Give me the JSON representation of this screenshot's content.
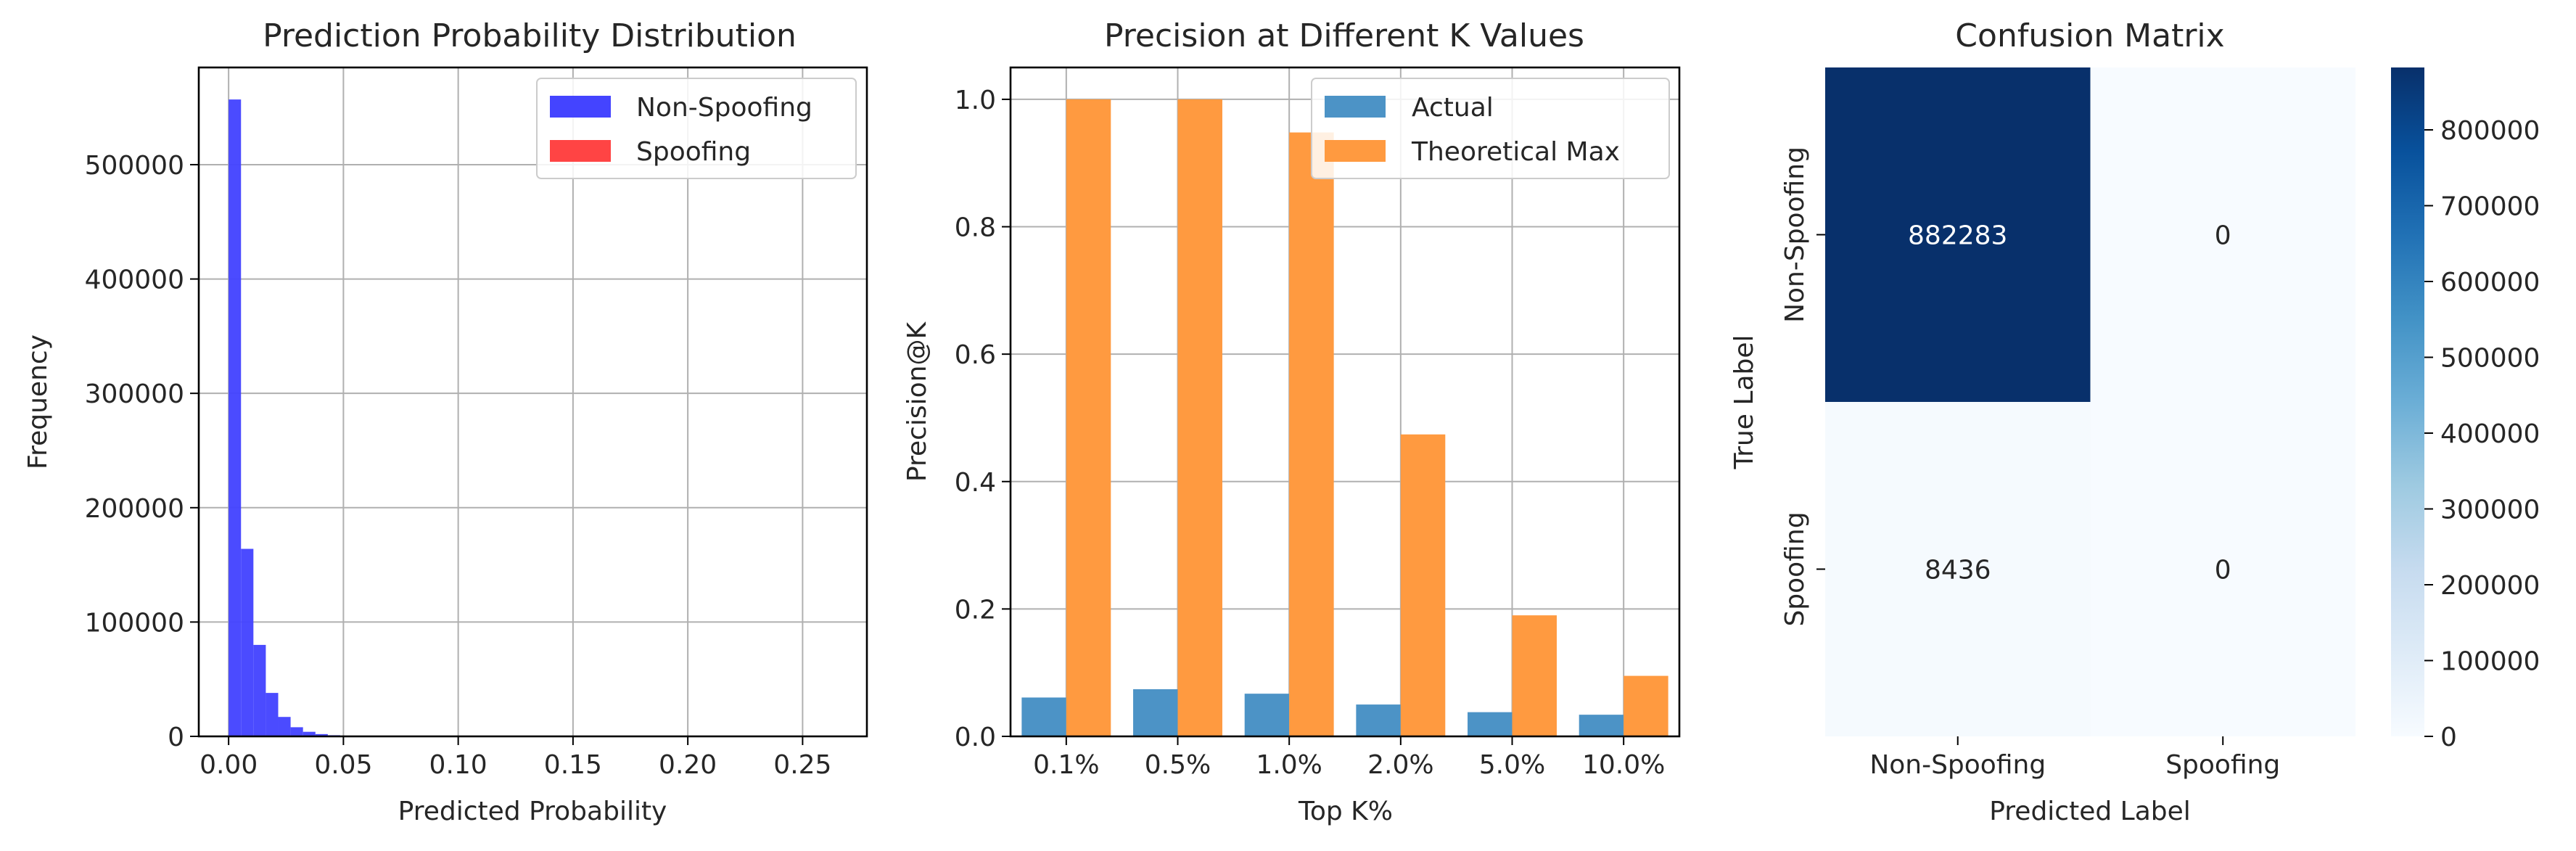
{
  "chart_data": [
    {
      "type": "histogram",
      "title": "Prediction Probability Distribution",
      "xlabel": "Predicted Probability",
      "ylabel": "Frequency",
      "xlim": [
        -0.013,
        0.278
      ],
      "ylim": [
        0,
        585000
      ],
      "xticks": [
        0.0,
        0.05,
        0.1,
        0.15,
        0.2,
        0.25
      ],
      "xtick_labels": [
        "0.00",
        "0.05",
        "0.10",
        "0.15",
        "0.20",
        "0.25"
      ],
      "yticks": [
        0,
        100000,
        200000,
        300000,
        400000,
        500000
      ],
      "ytick_labels": [
        "0",
        "100000",
        "200000",
        "300000",
        "400000",
        "500000"
      ],
      "grid": true,
      "legend_position": "top-right",
      "bin_width": 0.0054,
      "series": [
        {
          "name": "Non-Spoofing",
          "color": "#4444ff",
          "bin_starts": [
            0.0,
            0.0054,
            0.0108,
            0.0162,
            0.0216,
            0.027,
            0.0324,
            0.0378,
            0.0432,
            0.0486,
            0.054
          ],
          "values": [
            557000,
            164000,
            80000,
            38000,
            17000,
            8000,
            4000,
            2000,
            1000,
            600,
            300
          ]
        },
        {
          "name": "Spoofing",
          "color": "#ff4444",
          "bin_starts": [],
          "values": []
        }
      ]
    },
    {
      "type": "bar",
      "title": "Precision at Different K Values",
      "xlabel": "Top K%",
      "ylabel": "Precision@K",
      "categories": [
        "0.1%",
        "0.5%",
        "1.0%",
        "2.0%",
        "5.0%",
        "10.0%"
      ],
      "ylim": [
        0,
        1.05
      ],
      "yticks": [
        0.0,
        0.2,
        0.4,
        0.6,
        0.8,
        1.0
      ],
      "ytick_labels": [
        "0.0",
        "0.2",
        "0.4",
        "0.6",
        "0.8",
        "1.0"
      ],
      "grid": true,
      "legend_position": "top-right",
      "series": [
        {
          "name": "Actual",
          "color": "#4c93c6",
          "values": [
            0.061,
            0.074,
            0.067,
            0.05,
            0.038,
            0.034
          ]
        },
        {
          "name": "Theoretical Max",
          "color": "#ff9a40",
          "values": [
            1.0,
            1.0,
            0.948,
            0.474,
            0.19,
            0.095
          ]
        }
      ]
    },
    {
      "type": "heatmap",
      "title": "Confusion Matrix",
      "xlabel": "Predicted Label",
      "ylabel": "True Label",
      "x_categories": [
        "Non-Spoofing",
        "Spoofing"
      ],
      "y_categories": [
        "Non-Spoofing",
        "Spoofing"
      ],
      "values": [
        [
          882283,
          0
        ],
        [
          8436,
          0
        ]
      ],
      "colormap": "Blues",
      "color_range": [
        0,
        882283
      ],
      "colorbar_ticks": [
        0,
        100000,
        200000,
        300000,
        400000,
        500000,
        600000,
        700000,
        800000
      ],
      "colorbar_tick_labels": [
        "0",
        "100000",
        "200000",
        "300000",
        "400000",
        "500000",
        "600000",
        "700000",
        "800000"
      ]
    }
  ]
}
